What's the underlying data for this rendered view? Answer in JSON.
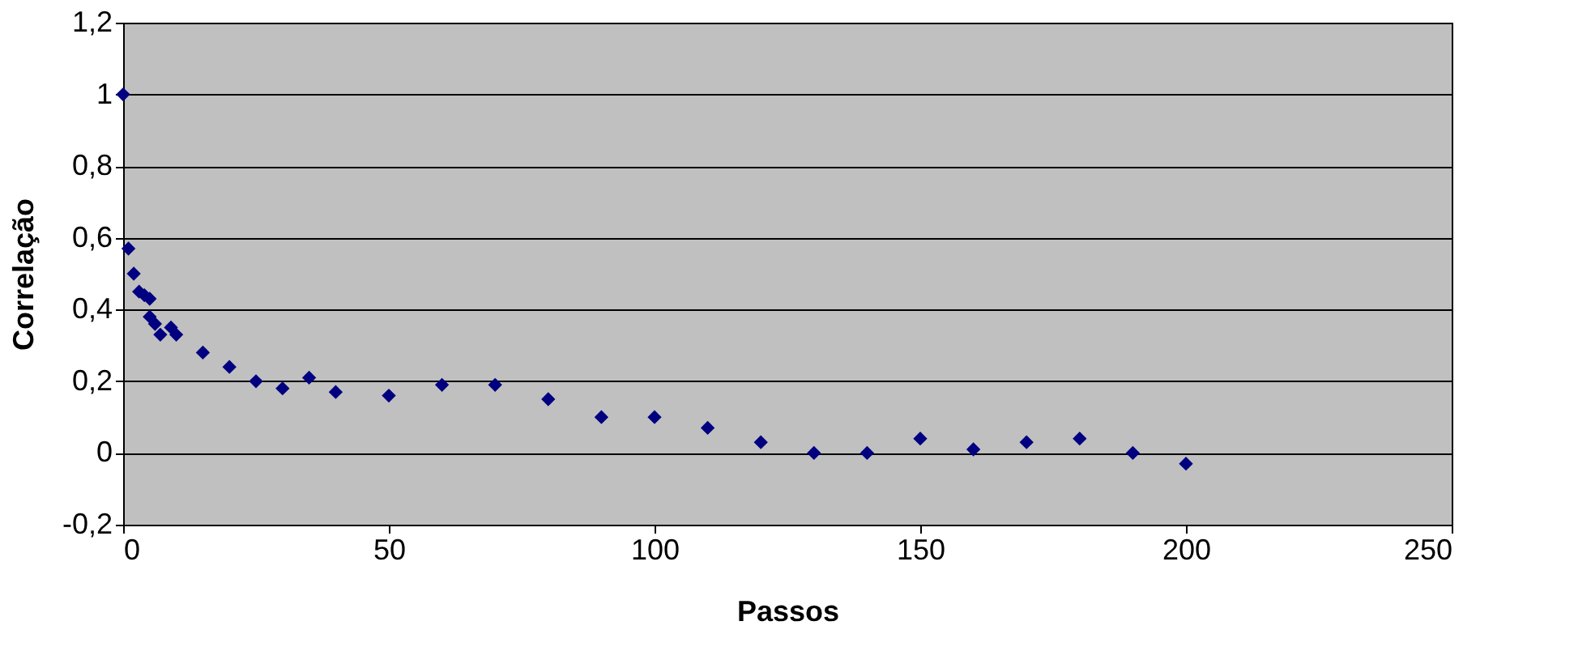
{
  "chart_data": {
    "type": "scatter",
    "xlabel": "Passos",
    "ylabel": "Correlação",
    "x": [
      0,
      1,
      2,
      3,
      4,
      5,
      5,
      6,
      7,
      9,
      10,
      15,
      20,
      25,
      30,
      35,
      40,
      50,
      60,
      70,
      80,
      90,
      100,
      110,
      120,
      130,
      140,
      150,
      160,
      170,
      180,
      190,
      200
    ],
    "series": [
      {
        "color": "#000080",
        "values": [
          1.0,
          0.57,
          0.5,
          0.45,
          0.44,
          0.43,
          0.38,
          0.36,
          0.33,
          0.35,
          0.33,
          0.28,
          0.24,
          0.2,
          0.18,
          0.21,
          0.17,
          0.16,
          0.19,
          0.19,
          0.15,
          0.1,
          0.1,
          0.07,
          0.03,
          0.0,
          0.0,
          0.04,
          0.01,
          0.03,
          0.04,
          0.0,
          -0.03
        ]
      }
    ],
    "xlim": [
      0,
      250
    ],
    "xticks": [
      0,
      50,
      100,
      150,
      200,
      250
    ],
    "ylim": [
      -0.2,
      1.2
    ],
    "yticks": [
      {
        "value": -0.2,
        "label": "-0,2"
      },
      0,
      {
        "value": 0.2,
        "label": "0,2"
      },
      {
        "value": 0.4,
        "label": "0,4"
      },
      {
        "value": 0.6,
        "label": "0,6"
      },
      {
        "value": 0.8,
        "label": "0,8"
      },
      1,
      {
        "value": 1.2,
        "label": "1,2"
      }
    ],
    "grid": "y",
    "marker": "diamond"
  }
}
